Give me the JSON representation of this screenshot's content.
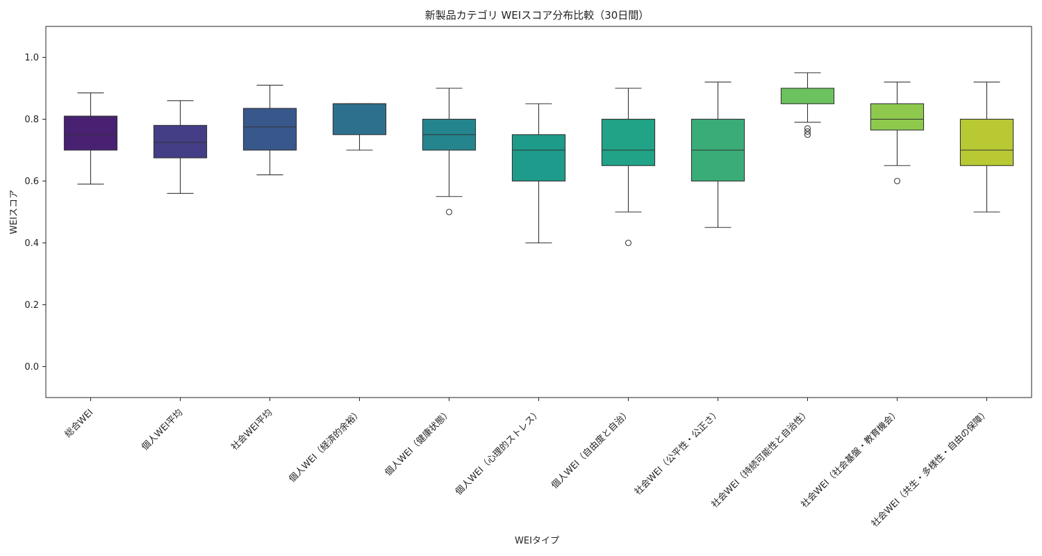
{
  "chart_data": {
    "type": "box",
    "title": "新製品カテゴリ WEIスコア分布比較（30日間）",
    "xlabel": "WEIタイプ",
    "ylabel": "WEIスコア",
    "ylim": [
      -0.1,
      1.1
    ],
    "yticks": [
      "0.0",
      "0.2",
      "0.4",
      "0.6",
      "0.8",
      "1.0"
    ],
    "ytick_values": [
      0.0,
      0.2,
      0.4,
      0.6,
      0.8,
      1.0
    ],
    "grid": false,
    "legend": "none",
    "categories": [
      "総合WEI",
      "個人WEI平均",
      "社会WEI平均",
      "個人WEI（経済的余裕）",
      "個人WEI（健康状態）",
      "個人WEI（心理的ストレス）",
      "個人WEI（自由度と自治）",
      "社会WEI（公平性・公正さ）",
      "社会WEI（持続可能性と自治性）",
      "社会WEI（社会基盤・教育機会）",
      "社会WEI（共生・多様性・自由の保障）"
    ],
    "boxes": [
      {
        "whisker_low": 0.59,
        "q1": 0.7,
        "median": 0.75,
        "q3": 0.81,
        "whisker_high": 0.885,
        "outliers": [],
        "color": "#482173"
      },
      {
        "whisker_low": 0.56,
        "q1": 0.675,
        "median": 0.725,
        "q3": 0.78,
        "whisker_high": 0.86,
        "outliers": [],
        "color": "#433e85"
      },
      {
        "whisker_low": 0.62,
        "q1": 0.7,
        "median": 0.775,
        "q3": 0.835,
        "whisker_high": 0.91,
        "outliers": [],
        "color": "#38588c"
      },
      {
        "whisker_low": 0.7,
        "q1": 0.75,
        "median": 0.85,
        "q3": 0.85,
        "whisker_high": 0.85,
        "outliers": [],
        "color": "#2d708e"
      },
      {
        "whisker_low": 0.55,
        "q1": 0.7,
        "median": 0.75,
        "q3": 0.8,
        "whisker_high": 0.9,
        "outliers": [
          0.5
        ],
        "color": "#25858e"
      },
      {
        "whisker_low": 0.4,
        "q1": 0.6,
        "median": 0.7,
        "q3": 0.75,
        "whisker_high": 0.85,
        "outliers": [],
        "color": "#1e9b8a"
      },
      {
        "whisker_low": 0.5,
        "q1": 0.65,
        "median": 0.7,
        "q3": 0.8,
        "whisker_high": 0.9,
        "outliers": [
          0.4
        ],
        "color": "#20a386"
      },
      {
        "whisker_low": 0.45,
        "q1": 0.6,
        "median": 0.7,
        "q3": 0.8,
        "whisker_high": 0.92,
        "outliers": [],
        "color": "#3aac78"
      },
      {
        "whisker_low": 0.79,
        "q1": 0.85,
        "median": 0.9,
        "q3": 0.9,
        "whisker_high": 0.95,
        "outliers": [
          0.77,
          0.76,
          0.75
        ],
        "color": "#6cc25e"
      },
      {
        "whisker_low": 0.65,
        "q1": 0.765,
        "median": 0.8,
        "q3": 0.85,
        "whisker_high": 0.92,
        "outliers": [
          0.6
        ],
        "color": "#8ec94e"
      },
      {
        "whisker_low": 0.5,
        "q1": 0.65,
        "median": 0.7,
        "q3": 0.8,
        "whisker_high": 0.92,
        "outliers": [],
        "color": "#b8c933"
      }
    ]
  }
}
